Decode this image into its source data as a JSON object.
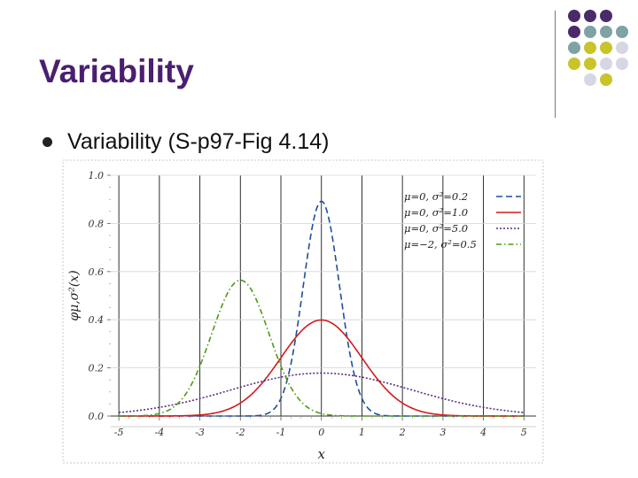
{
  "slide": {
    "title": "Variability",
    "bullet": "Variability (S-p97-Fig 4.14)"
  },
  "decoration": {
    "dot_colors": {
      "purple": "#4b2a6b",
      "teal": "#7fa3a4",
      "olive": "#c8c42a",
      "lavender": "#d6d6e4"
    },
    "grid": [
      [
        "purple",
        "purple",
        "purple",
        ""
      ],
      [
        "purple",
        "teal",
        "teal",
        "teal"
      ],
      [
        "teal",
        "olive",
        "olive",
        "lavender"
      ],
      [
        "olive",
        "olive",
        "lavender",
        "lavender"
      ],
      [
        "",
        "lavender",
        "olive",
        ""
      ]
    ]
  },
  "chart_data": {
    "type": "line",
    "xlabel": "x",
    "ylabel": "φμ,σ²(x)",
    "xlim": [
      -5.2,
      5.3
    ],
    "ylim": [
      0.0,
      1.0
    ],
    "x_ticks": [
      "-5",
      "-4",
      "-3",
      "-2",
      "-1",
      "0",
      "1",
      "2",
      "3",
      "4",
      "5"
    ],
    "y_ticks": [
      "0.0",
      "0.2",
      "0.4",
      "0.6",
      "0.8",
      "1.0"
    ],
    "grid": true,
    "legend_position": "top-right",
    "series": [
      {
        "label": "μ=0,   σ²=0.2",
        "mu": 0,
        "var": 0.2,
        "color": "#1f4e9a",
        "dash": "7,4"
      },
      {
        "label": "μ=0,   σ²=1.0",
        "mu": 0,
        "var": 1.0,
        "color": "#d01c1c",
        "dash": ""
      },
      {
        "label": "μ=0,   σ²=5.0",
        "mu": 0,
        "var": 5.0,
        "color": "#5a2d82",
        "dash": "2,2"
      },
      {
        "label": "μ=−2, σ²=0.5",
        "mu": -2,
        "var": 0.5,
        "color": "#4f9a14",
        "dash": "6,3,1.5,3"
      }
    ]
  }
}
